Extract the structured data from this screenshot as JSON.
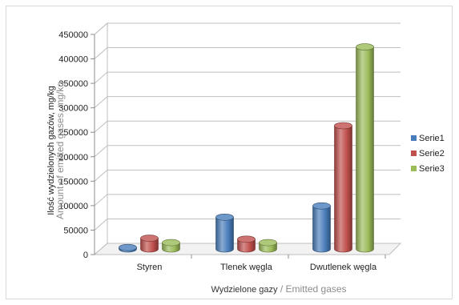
{
  "chart_data": {
    "type": "bar",
    "style": "3d-cylinder",
    "categories": [
      "Styren",
      "Tlenek węgla",
      "Dwutlenek węgla"
    ],
    "series": [
      {
        "name": "Serie1",
        "color": "#4a7ebb",
        "values": [
          3000,
          65000,
          88000
        ]
      },
      {
        "name": "Serie2",
        "color": "#c0504d",
        "values": [
          22000,
          20000,
          252000
        ]
      },
      {
        "name": "Serie3",
        "color": "#9bbb59",
        "values": [
          13000,
          13000,
          413000
        ]
      }
    ],
    "ylim": [
      0,
      450000
    ],
    "yticks": [
      0,
      50000,
      100000,
      150000,
      200000,
      250000,
      300000,
      350000,
      400000,
      450000
    ],
    "ylabel": "Ilość wydzielonych gazów, mg/kg",
    "ylabel_en": "Amount of emitted gases, mg/kg",
    "xlabel": "Wydzielone gazy",
    "xlabel_sep": " / ",
    "xlabel_en": "Emitted gases",
    "grid": true,
    "legend": "right"
  }
}
